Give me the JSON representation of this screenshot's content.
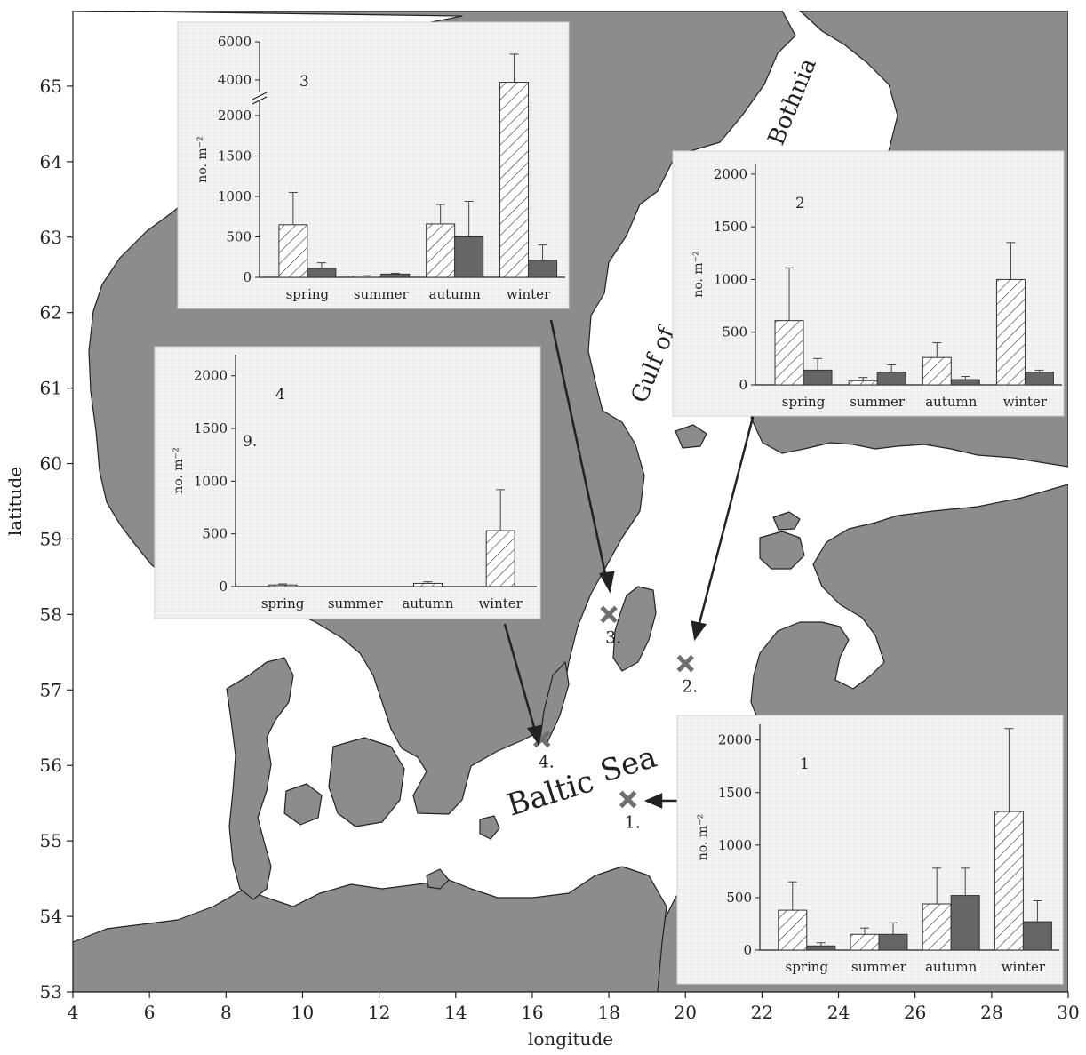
{
  "map": {
    "xlabel": "longitude",
    "ylabel": "latitude",
    "xlim": [
      4,
      30
    ],
    "ylim": [
      53,
      66
    ],
    "xticks": [
      "4",
      "6",
      "8",
      "10",
      "12",
      "14",
      "16",
      "18",
      "20",
      "22",
      "24",
      "26",
      "28",
      "30"
    ],
    "yticks": [
      "53",
      "54",
      "55",
      "56",
      "57",
      "58",
      "59",
      "60",
      "61",
      "62",
      "63",
      "64",
      "65"
    ],
    "colors": {
      "land": "#8c8c8c",
      "sea": "#ffffff",
      "coast": "#222222",
      "marker": "#6f6f6f"
    },
    "labels": {
      "baltic": "Baltic",
      "sea": "Sea",
      "gulf_of": "Gulf of",
      "bothnia": "Bothnia"
    },
    "stations": [
      {
        "id": "1",
        "label": "1.",
        "lon": 18.5,
        "lat": 55.55
      },
      {
        "id": "2",
        "label": "2.",
        "lon": 20.0,
        "lat": 57.35
      },
      {
        "id": "3",
        "label": "3.",
        "lon": 18.0,
        "lat": 58.0
      },
      {
        "id": "4",
        "label": "4.",
        "lon": 16.25,
        "lat": 56.35
      }
    ]
  },
  "chart_data": [
    {
      "type": "bar",
      "panel": "3",
      "ylabel": "no. m⁻²",
      "categories": [
        "spring",
        "summer",
        "autumn",
        "winter"
      ],
      "yticks": [
        "0",
        "500",
        "1000",
        "1500",
        "2000",
        "4000",
        "6000"
      ],
      "axis_break": true,
      "series": [
        {
          "pattern": "hatched",
          "values": [
            650,
            15,
            660,
            3880
          ],
          "errors": [
            1050,
            20,
            900,
            5350
          ]
        },
        {
          "pattern": "solid",
          "values": [
            110,
            40,
            500,
            210
          ],
          "errors": [
            180,
            50,
            940,
            400
          ]
        }
      ]
    },
    {
      "type": "bar",
      "panel": "2",
      "ylabel": "no. m⁻²",
      "categories": [
        "spring",
        "summer",
        "autumn",
        "winter"
      ],
      "yticks": [
        "0",
        "500",
        "1000",
        "1500",
        "2000"
      ],
      "ylim": [
        0,
        2100
      ],
      "series": [
        {
          "pattern": "hatched",
          "values": [
            610,
            40,
            260,
            1000
          ],
          "errors": [
            1110,
            70,
            400,
            1350
          ]
        },
        {
          "pattern": "solid",
          "values": [
            140,
            120,
            50,
            120
          ],
          "errors": [
            250,
            190,
            80,
            140
          ]
        }
      ]
    },
    {
      "type": "bar",
      "panel": "4",
      "ylabel": "no. m⁻²",
      "categories": [
        "spring",
        "summer",
        "autumn",
        "winter"
      ],
      "yticks": [
        "0",
        "500",
        "1000",
        "1500",
        "2000"
      ],
      "ylim": [
        0,
        2200
      ],
      "extra_label": "9.",
      "series": [
        {
          "pattern": "hatched",
          "values": [
            15,
            0,
            30,
            530
          ],
          "errors": [
            25,
            0,
            45,
            920
          ]
        }
      ]
    },
    {
      "type": "bar",
      "panel": "1",
      "ylabel": "no. m⁻²",
      "categories": [
        "spring",
        "summer",
        "autumn",
        "winter"
      ],
      "yticks": [
        "0",
        "500",
        "1000",
        "1500",
        "2000"
      ],
      "ylim": [
        0,
        2150
      ],
      "series": [
        {
          "pattern": "hatched",
          "values": [
            380,
            150,
            440,
            1320
          ],
          "errors": [
            650,
            210,
            780,
            2110
          ]
        },
        {
          "pattern": "solid",
          "values": [
            40,
            150,
            520,
            270
          ],
          "errors": [
            70,
            260,
            780,
            470
          ]
        }
      ]
    }
  ]
}
